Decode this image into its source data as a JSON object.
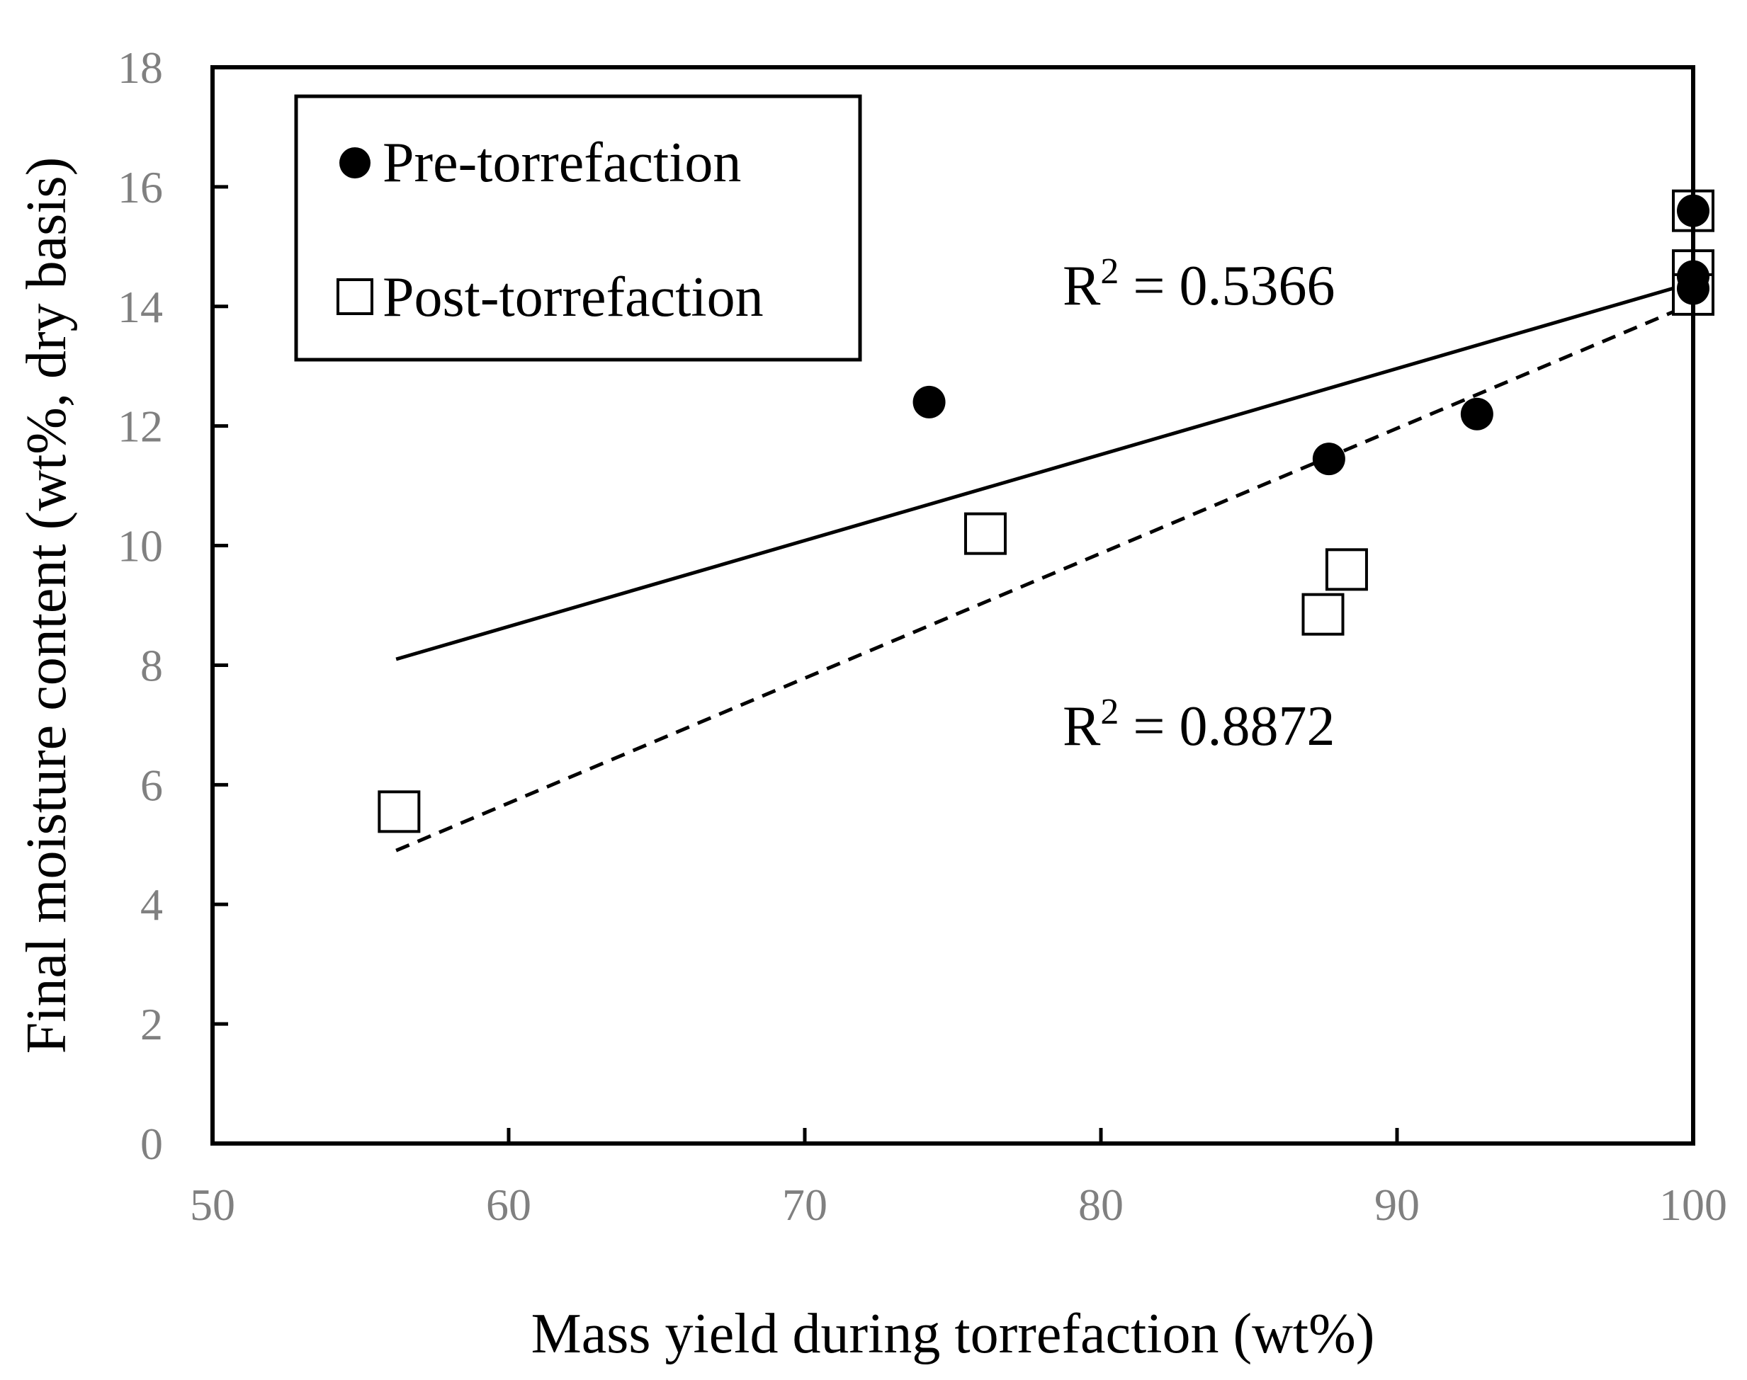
{
  "chart_data": {
    "type": "scatter",
    "title": "",
    "xlabel": "Mass yield during torrefaction (wt%)",
    "ylabel": "Final moisture content (wt%, dry basis)",
    "xlim": [
      50,
      100
    ],
    "ylim": [
      0,
      18
    ],
    "xticks": [
      "50",
      "60",
      "70",
      "80",
      "90",
      "100"
    ],
    "yticks": [
      "0",
      "2",
      "4",
      "6",
      "8",
      "10",
      "12",
      "14",
      "16",
      "18"
    ],
    "grid": false,
    "legend_position": "top-left",
    "series": [
      {
        "name": "Pre-torrefaction",
        "marker": "filled-circle",
        "trendline": "solid",
        "r_squared_label": "R",
        "r_squared_sup": "2",
        "r_squared_value": " = 0.5366",
        "trend_x": [
          56.2,
          100
        ],
        "trend_y": [
          8.1,
          14.4
        ],
        "points": [
          {
            "x": 74.2,
            "y": 12.4
          },
          {
            "x": 87.7,
            "y": 11.45
          },
          {
            "x": 92.7,
            "y": 12.2
          },
          {
            "x": 100,
            "y": 15.6
          },
          {
            "x": 100,
            "y": 14.5
          },
          {
            "x": 100,
            "y": 14.3
          }
        ]
      },
      {
        "name": "Post-torrefaction",
        "marker": "open-square",
        "trendline": "dashed",
        "r_squared_label": "R",
        "r_squared_sup": "2",
        "r_squared_value": " = 0.8872",
        "trend_x": [
          56.2,
          100
        ],
        "trend_y": [
          4.9,
          14.05
        ],
        "points": [
          {
            "x": 56.3,
            "y": 5.55
          },
          {
            "x": 76.1,
            "y": 10.2
          },
          {
            "x": 87.5,
            "y": 8.85
          },
          {
            "x": 88.3,
            "y": 9.6
          },
          {
            "x": 100,
            "y": 15.6
          },
          {
            "x": 100,
            "y": 14.6
          },
          {
            "x": 100,
            "y": 14.2
          }
        ]
      }
    ],
    "colors": {
      "axis": "#000000",
      "tick_text": "#808080",
      "marker": "#000000"
    }
  }
}
